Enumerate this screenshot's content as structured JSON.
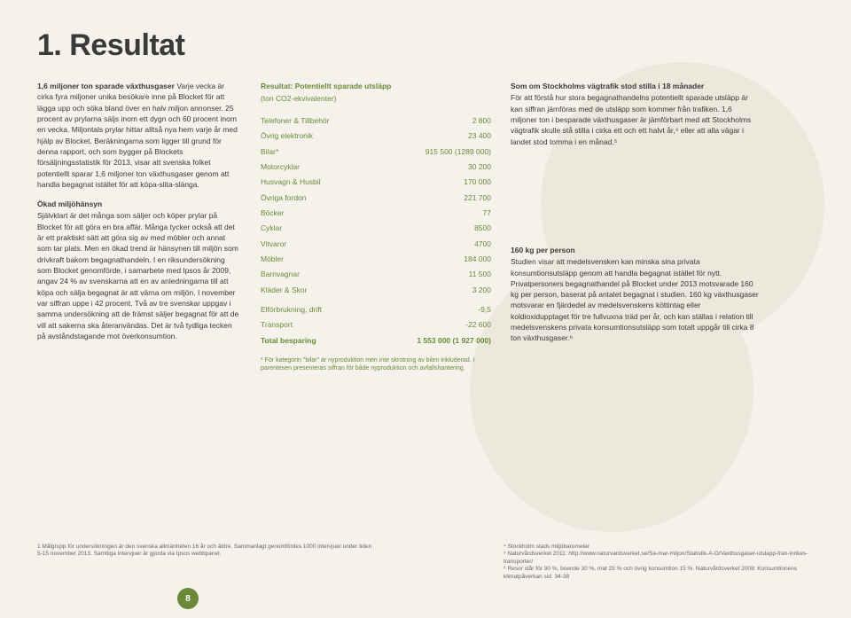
{
  "title": "1. Resultat",
  "col1": {
    "intro_head": "1,6 miljoner ton sparade växthusgaser",
    "intro_body": "Varje vecka är cirka fyra miljoner unika besökare inne på Blocket för att lägga upp och söka bland över en halv miljon annonser. 25 procent av prylarna säljs inom ett dygn och 60 procent inom en vecka. Miljontals prylar hittar alltså nya hem varje år med hjälp av Blocket. Beräkningarna som ligger till grund för denna rapport, och som bygger på Blockets försäljningsstatistik för 2013, visar att svenska folket potentiellt sparar 1,6 miljoner ton växthusgaser genom att handla begagnat istället för att köpa-slita-slänga.",
    "sub2_head": "Ökad miljöhänsyn",
    "sub2_body": "Självklart är det många som säljer och köper prylar på Blocket för att göra en bra affär. Många tycker också att det är ett praktiskt sätt att göra sig av med möbler och annat som tar plats. Men en ökad trend är hänsynen till miljön som drivkraft bakom begagnathandeln. I en riksundersökning som Blocket genomförde, i samarbete med Ipsos år 2009, angav 24 % av svenskarna att en av anledningarna till att köpa och sälja begagnat är att värna om miljön. I november var siffran uppe i 42 procent. Två av tre svenskar uppgav i samma undersökning att de främst säljer begagnat för att de vill att sakerna ska återanvändas. Det är två tydliga tecken på avståndstagande mot överkonsumtion."
  },
  "col2": {
    "table_title": "Resultat: Potentiellt sparade utsläpp",
    "table_sub": "(ton CO2-ekvivalenter)",
    "rows": [
      {
        "label": "Telefoner & Tillbehör",
        "value": "2 800"
      },
      {
        "label": "Övrig elektronik",
        "value": "23 400"
      },
      {
        "label": "Bilar*",
        "value": "915 500 (1289 000)"
      },
      {
        "label": "Motorcyklar",
        "value": "30 200"
      },
      {
        "label": "Husvagn & Husbil",
        "value": "170 000"
      },
      {
        "label": "Övriga fordon",
        "value": "221 700"
      },
      {
        "label": "Böcker",
        "value": "77"
      },
      {
        "label": "Cyklar",
        "value": "8500"
      },
      {
        "label": "Vitvaror",
        "value": "4700"
      },
      {
        "label": "Möbler",
        "value": "184 000"
      },
      {
        "label": "Barnvagnar",
        "value": "11 500"
      },
      {
        "label": "Kläder & Skor",
        "value": "3 200"
      }
    ],
    "rows2": [
      {
        "label": "Elförbrukning, drift",
        "value": "-9,5"
      },
      {
        "label": "Transport",
        "value": "-22 600"
      }
    ],
    "total_label": "Total besparing",
    "total_value": "1 553 000 (1 927 000)",
    "footnote": "* För kategorin \"bilar\" är nyproduktion men inte skrotning av bilen inkluderad. I parentesen presenteras siffran för både nyproduktion och avfallshantering."
  },
  "col3": {
    "b1_head": "Som om Stockholms vägtrafik stod stilla i 18 månader",
    "b1_body": "För att förstå hur stora begagnathandelns potentiellt sparade utsläpp är kan siffran jämföras med de utsläpp som kommer från trafiken. 1,6 miljoner ton i besparade växthusgaser är jämförbart med att Stockholms vägtrafik skulle stå stilla i cirka ett och ett halvt år,⁴ eller att alla vägar i landet stod tomma i en månad.⁵",
    "b2_head": "160 kg per person",
    "b2_body": "Studien visar att medelsvensken kan minska sina privata konsumtionsutsläpp genom att handla begagnat istället för nytt. Privatpersoners begagnathandel på Blocket under 2013 motsvarade 160 kg per person, baserat på antalet begagnat i studien. 160 kg växthusgaser motsvarar en fjärdedel av medelsvenskens köttintag eller koldioxidupptaget för tre fullvuxna träd per år, och kan ställas i relation till medelsvenskens privata konsumtionsutsläpp som totalt uppgår till cirka 8 ton växthusgaser.⁶"
  },
  "footnotes": {
    "left": "1 Målgrupp för undersökningen är den svenska allmänheten 16 år och äldre. Sammanlagt genomfördes 1000 intervjuer under tiden 5-15 november 2013. Samtliga intervjuer är gjorda via Ipsos webbpanel.",
    "right": "⁴ Stockholm stads miljöbarometer\n⁵ Naturvårdsverket 2011: http://www.naturvardsverket.se/Sa-mar-miljon/Statistik-A-O/Vaxthusgaser-utslapp-fran-inrikes-transporter/\n⁶ Resor står för 30 %, boende 30 %, mat 25 % och övrig konsumtion 15 %. Naturvårdsverket 2008: Konsumtionens klimatpåverkan sid. 34-38"
  },
  "page_number": "8"
}
